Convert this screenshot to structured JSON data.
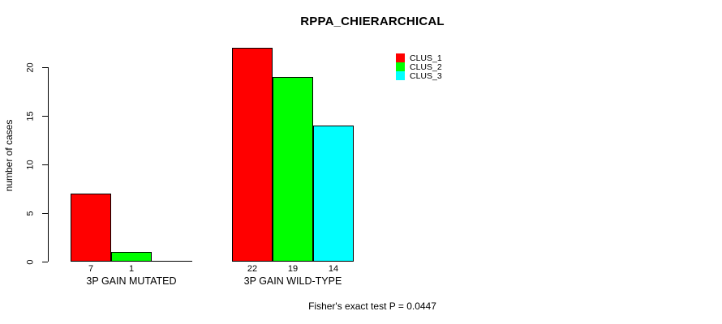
{
  "chart_data": {
    "type": "bar",
    "title": "RPPA_CHIERARCHICAL",
    "xlabel": "",
    "ylabel": "number of cases",
    "ylim": [
      0,
      22
    ],
    "yticks": [
      0,
      5,
      10,
      15,
      20
    ],
    "grid": false,
    "categories": [
      "3P GAIN MUTATED",
      "3P GAIN WILD-TYPE"
    ],
    "series": [
      {
        "name": "CLUS_1",
        "color": "#ff0000",
        "values": [
          7,
          22
        ]
      },
      {
        "name": "CLUS_2",
        "color": "#00ff00",
        "values": [
          1,
          19
        ]
      },
      {
        "name": "CLUS_3",
        "color": "#00ffff",
        "values": [
          0,
          14
        ]
      }
    ],
    "bar_value_labels": [
      [
        "7",
        "1",
        ""
      ],
      [
        "22",
        "19",
        "14"
      ]
    ],
    "legend": {
      "position": "top-right",
      "entries": [
        "CLUS_1",
        "CLUS_2",
        "CLUS_3"
      ]
    },
    "annotation": "Fisher's exact test P = 0.0447"
  }
}
